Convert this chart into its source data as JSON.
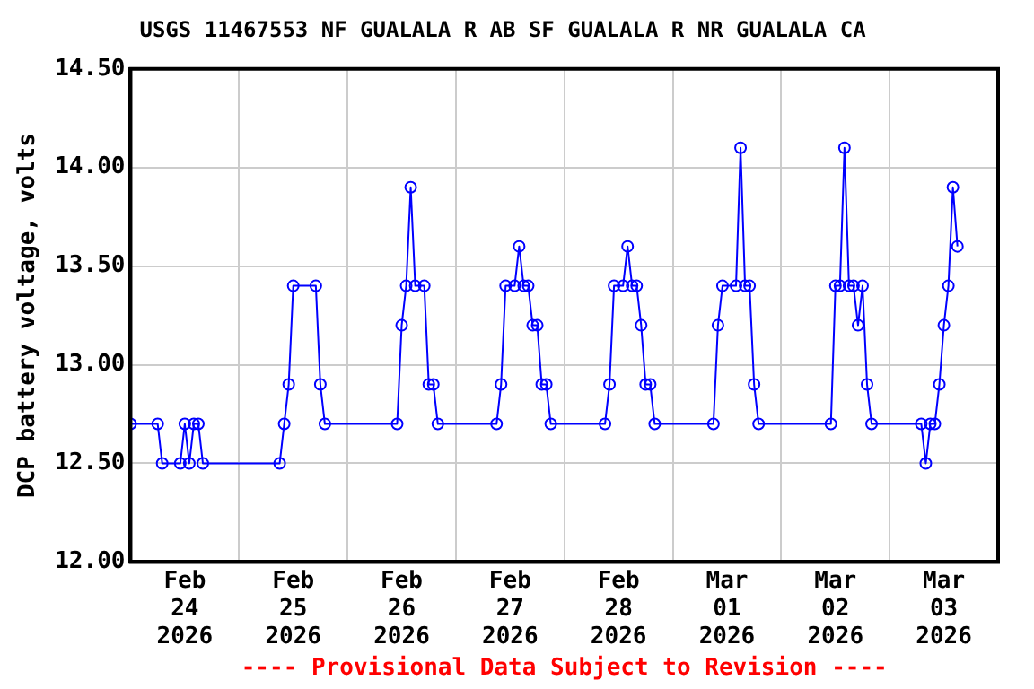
{
  "chart_data": {
    "type": "line",
    "title": "USGS 11467553 NF GUALALA R AB SF GUALALA R NR GUALALA CA",
    "ylabel": "DCP battery voltage, volts",
    "annotations": [
      "---- Provisional Data Subject to Revision ----"
    ],
    "x": [
      "2026-02-24T00:00",
      "2026-02-24T06:00",
      "2026-02-24T07:00",
      "2026-02-24T11:00",
      "2026-02-24T12:00",
      "2026-02-24T13:00",
      "2026-02-24T14:00",
      "2026-02-24T15:00",
      "2026-02-24T16:00",
      "2026-02-25T09:00",
      "2026-02-25T10:00",
      "2026-02-25T11:00",
      "2026-02-25T12:00",
      "2026-02-25T17:00",
      "2026-02-25T18:00",
      "2026-02-25T19:00",
      "2026-02-26T11:00",
      "2026-02-26T12:00",
      "2026-02-26T13:00",
      "2026-02-26T14:00",
      "2026-02-26T15:00",
      "2026-02-26T17:00",
      "2026-02-26T18:00",
      "2026-02-26T19:00",
      "2026-02-26T20:00",
      "2026-02-27T09:00",
      "2026-02-27T10:00",
      "2026-02-27T11:00",
      "2026-02-27T13:00",
      "2026-02-27T14:00",
      "2026-02-27T15:00",
      "2026-02-27T16:00",
      "2026-02-27T17:00",
      "2026-02-27T18:00",
      "2026-02-27T19:00",
      "2026-02-27T20:00",
      "2026-02-27T21:00",
      "2026-02-28T09:00",
      "2026-02-28T10:00",
      "2026-02-28T11:00",
      "2026-02-28T13:00",
      "2026-02-28T14:00",
      "2026-02-28T15:00",
      "2026-02-28T16:00",
      "2026-02-28T17:00",
      "2026-02-28T18:00",
      "2026-02-28T19:00",
      "2026-02-28T20:00",
      "2026-03-01T09:00",
      "2026-03-01T10:00",
      "2026-03-01T11:00",
      "2026-03-01T14:00",
      "2026-03-01T15:00",
      "2026-03-01T16:00",
      "2026-03-01T17:00",
      "2026-03-01T18:00",
      "2026-03-01T19:00",
      "2026-03-02T11:00",
      "2026-03-02T12:00",
      "2026-03-02T13:00",
      "2026-03-02T14:00",
      "2026-03-02T15:00",
      "2026-03-02T16:00",
      "2026-03-02T17:00",
      "2026-03-02T18:00",
      "2026-03-02T19:00",
      "2026-03-02T20:00",
      "2026-03-03T07:00",
      "2026-03-03T08:00",
      "2026-03-03T09:00",
      "2026-03-03T10:00",
      "2026-03-03T11:00",
      "2026-03-03T12:00",
      "2026-03-03T13:00",
      "2026-03-03T14:00",
      "2026-03-03T15:00"
    ],
    "series": [
      {
        "color": "#0000ff",
        "values": [
          12.7,
          12.7,
          12.5,
          12.5,
          12.7,
          12.5,
          12.7,
          12.7,
          12.5,
          12.5,
          12.7,
          12.9,
          13.4,
          13.4,
          12.9,
          12.7,
          12.7,
          13.2,
          13.4,
          13.9,
          13.4,
          13.4,
          12.9,
          12.9,
          12.7,
          12.7,
          12.9,
          13.4,
          13.4,
          13.6,
          13.4,
          13.4,
          13.2,
          13.2,
          12.9,
          12.9,
          12.7,
          12.7,
          12.9,
          13.4,
          13.4,
          13.6,
          13.4,
          13.4,
          13.2,
          12.9,
          12.9,
          12.7,
          12.7,
          13.2,
          13.4,
          13.4,
          14.1,
          13.4,
          13.4,
          12.9,
          12.7,
          12.7,
          13.4,
          13.4,
          14.1,
          13.4,
          13.4,
          13.2,
          13.4,
          12.9,
          12.7,
          12.7,
          12.5,
          12.7,
          12.7,
          12.9,
          13.2,
          13.4,
          13.9,
          13.6
        ]
      }
    ],
    "xlim": [
      "2026-02-24T00:00",
      "2026-03-04T00:00"
    ],
    "xticks": [
      {
        "value": "2026-02-24T12:00",
        "label": "Feb 24 2026"
      },
      {
        "value": "2026-02-25T00:00",
        "label": null
      },
      {
        "value": "2026-02-25T12:00",
        "label": "Feb 25 2026"
      },
      {
        "value": "2026-02-26T00:00",
        "label": null
      },
      {
        "value": "2026-02-26T12:00",
        "label": "Feb 26 2026"
      },
      {
        "value": "2026-02-27T00:00",
        "label": null
      },
      {
        "value": "2026-02-27T12:00",
        "label": "Feb 27 2026"
      },
      {
        "value": "2026-02-28T00:00",
        "label": null
      },
      {
        "value": "2026-02-28T12:00",
        "label": "Feb 28 2026"
      },
      {
        "value": "2026-03-01T00:00",
        "label": null
      },
      {
        "value": "2026-03-01T12:00",
        "label": "Mar 01 2026"
      },
      {
        "value": "2026-03-02T00:00",
        "label": null
      },
      {
        "value": "2026-03-02T12:00",
        "label": "Mar 02 2026"
      },
      {
        "value": "2026-03-03T00:00",
        "label": null
      },
      {
        "value": "2026-03-03T12:00",
        "label": "Mar 03 2026"
      }
    ],
    "ylim": [
      12,
      14.5
    ],
    "yticks": [
      {
        "value": 12,
        "label": "12.00"
      },
      {
        "value": 12.5,
        "label": "12.50"
      },
      {
        "value": 13,
        "label": "13.00"
      },
      {
        "value": 13.5,
        "label": "13.50"
      },
      {
        "value": 14,
        "label": "14.00"
      },
      {
        "value": 14.5,
        "label": "14.50"
      }
    ],
    "grid": true,
    "marker": "circle",
    "line_style": "solid",
    "legend": false
  }
}
